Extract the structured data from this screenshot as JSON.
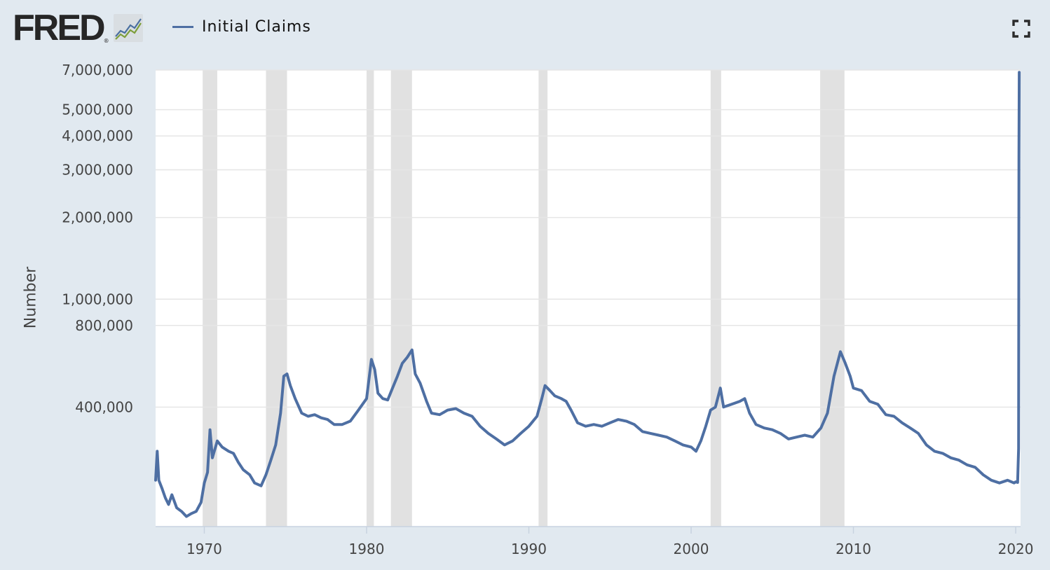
{
  "header": {
    "logo_text": "FRED",
    "logo_mark": "®",
    "logo_icon": "chart-line-icon",
    "fullscreen_icon": "fullscreen-icon"
  },
  "colors": {
    "background": "#e1e9f0",
    "plot_background": "#ffffff",
    "series": "#4e6fa3",
    "recession": "#e1e1e1",
    "grid": "#e6e6e6",
    "axis_text": "#444444"
  },
  "chart_data": {
    "type": "line",
    "title": "",
    "xlabel": "",
    "ylabel": "Number",
    "y_scale": "log",
    "ylim": [
      145000,
      7000000
    ],
    "xlim": [
      1967.0,
      2020.3
    ],
    "legend": "top-left",
    "grid": true,
    "y_ticks": [
      {
        "value": 400000,
        "label": "400,000"
      },
      {
        "value": 800000,
        "label": "800,000"
      },
      {
        "value": 1000000,
        "label": "1,000,000"
      },
      {
        "value": 2000000,
        "label": "2,000,000"
      },
      {
        "value": 3000000,
        "label": "3,000,000"
      },
      {
        "value": 4000000,
        "label": "4,000,000"
      },
      {
        "value": 5000000,
        "label": "5,000,000"
      },
      {
        "value": 7000000,
        "label": "7,000,000"
      }
    ],
    "x_ticks": [
      {
        "value": 1970,
        "label": "1970"
      },
      {
        "value": 1980,
        "label": "1980"
      },
      {
        "value": 1990,
        "label": "1990"
      },
      {
        "value": 2000,
        "label": "2000"
      },
      {
        "value": 2010,
        "label": "2010"
      },
      {
        "value": 2020,
        "label": "2020"
      }
    ],
    "recessions": [
      {
        "start": 1969.9,
        "end": 1970.8
      },
      {
        "start": 1973.8,
        "end": 1975.1
      },
      {
        "start": 1980.0,
        "end": 1980.45
      },
      {
        "start": 1981.5,
        "end": 1982.8
      },
      {
        "start": 1990.6,
        "end": 1991.15
      },
      {
        "start": 2001.2,
        "end": 2001.85
      },
      {
        "start": 2007.95,
        "end": 2009.45
      }
    ],
    "series": [
      {
        "name": "Initial Claims",
        "points": [
          [
            1967.0,
            215000
          ],
          [
            1967.1,
            275000
          ],
          [
            1967.2,
            215000
          ],
          [
            1967.4,
            200000
          ],
          [
            1967.6,
            185000
          ],
          [
            1967.8,
            175000
          ],
          [
            1968.0,
            190000
          ],
          [
            1968.3,
            170000
          ],
          [
            1968.6,
            165000
          ],
          [
            1968.9,
            158000
          ],
          [
            1969.2,
            162000
          ],
          [
            1969.5,
            165000
          ],
          [
            1969.8,
            178000
          ],
          [
            1970.0,
            210000
          ],
          [
            1970.2,
            230000
          ],
          [
            1970.35,
            330000
          ],
          [
            1970.5,
            260000
          ],
          [
            1970.8,
            300000
          ],
          [
            1971.1,
            285000
          ],
          [
            1971.5,
            275000
          ],
          [
            1971.8,
            270000
          ],
          [
            1972.1,
            250000
          ],
          [
            1972.4,
            235000
          ],
          [
            1972.8,
            225000
          ],
          [
            1973.1,
            210000
          ],
          [
            1973.5,
            205000
          ],
          [
            1973.8,
            225000
          ],
          [
            1974.1,
            255000
          ],
          [
            1974.4,
            290000
          ],
          [
            1974.7,
            380000
          ],
          [
            1974.9,
            520000
          ],
          [
            1975.1,
            530000
          ],
          [
            1975.3,
            480000
          ],
          [
            1975.6,
            430000
          ],
          [
            1976.0,
            380000
          ],
          [
            1976.4,
            370000
          ],
          [
            1976.8,
            375000
          ],
          [
            1977.2,
            365000
          ],
          [
            1977.6,
            360000
          ],
          [
            1978.0,
            345000
          ],
          [
            1978.5,
            345000
          ],
          [
            1979.0,
            355000
          ],
          [
            1979.5,
            390000
          ],
          [
            1980.0,
            430000
          ],
          [
            1980.3,
            600000
          ],
          [
            1980.5,
            550000
          ],
          [
            1980.7,
            450000
          ],
          [
            1981.0,
            430000
          ],
          [
            1981.3,
            425000
          ],
          [
            1981.6,
            470000
          ],
          [
            1981.9,
            520000
          ],
          [
            1982.2,
            580000
          ],
          [
            1982.5,
            610000
          ],
          [
            1982.8,
            650000
          ],
          [
            1983.0,
            530000
          ],
          [
            1983.3,
            490000
          ],
          [
            1983.7,
            420000
          ],
          [
            1984.0,
            380000
          ],
          [
            1984.5,
            375000
          ],
          [
            1985.0,
            390000
          ],
          [
            1985.5,
            395000
          ],
          [
            1986.0,
            380000
          ],
          [
            1986.5,
            370000
          ],
          [
            1987.0,
            340000
          ],
          [
            1987.5,
            320000
          ],
          [
            1988.0,
            305000
          ],
          [
            1988.5,
            290000
          ],
          [
            1989.0,
            300000
          ],
          [
            1989.5,
            320000
          ],
          [
            1990.0,
            340000
          ],
          [
            1990.5,
            370000
          ],
          [
            1990.8,
            430000
          ],
          [
            1991.0,
            480000
          ],
          [
            1991.3,
            460000
          ],
          [
            1991.6,
            440000
          ],
          [
            1992.0,
            430000
          ],
          [
            1992.3,
            420000
          ],
          [
            1992.6,
            390000
          ],
          [
            1993.0,
            350000
          ],
          [
            1993.5,
            340000
          ],
          [
            1994.0,
            345000
          ],
          [
            1994.5,
            340000
          ],
          [
            1995.0,
            350000
          ],
          [
            1995.5,
            360000
          ],
          [
            1996.0,
            355000
          ],
          [
            1996.5,
            345000
          ],
          [
            1997.0,
            325000
          ],
          [
            1997.5,
            320000
          ],
          [
            1998.0,
            315000
          ],
          [
            1998.5,
            310000
          ],
          [
            1999.0,
            300000
          ],
          [
            1999.5,
            290000
          ],
          [
            2000.0,
            285000
          ],
          [
            2000.3,
            275000
          ],
          [
            2000.6,
            300000
          ],
          [
            2000.9,
            340000
          ],
          [
            2001.2,
            390000
          ],
          [
            2001.5,
            400000
          ],
          [
            2001.8,
            470000
          ],
          [
            2002.0,
            400000
          ],
          [
            2002.5,
            410000
          ],
          [
            2003.0,
            420000
          ],
          [
            2003.3,
            430000
          ],
          [
            2003.6,
            380000
          ],
          [
            2004.0,
            345000
          ],
          [
            2004.5,
            335000
          ],
          [
            2005.0,
            330000
          ],
          [
            2005.5,
            320000
          ],
          [
            2006.0,
            305000
          ],
          [
            2006.5,
            310000
          ],
          [
            2007.0,
            315000
          ],
          [
            2007.5,
            310000
          ],
          [
            2008.0,
            335000
          ],
          [
            2008.4,
            380000
          ],
          [
            2008.8,
            520000
          ],
          [
            2009.2,
            640000
          ],
          [
            2009.5,
            580000
          ],
          [
            2009.8,
            520000
          ],
          [
            2010.0,
            470000
          ],
          [
            2010.5,
            460000
          ],
          [
            2011.0,
            420000
          ],
          [
            2011.5,
            410000
          ],
          [
            2012.0,
            375000
          ],
          [
            2012.5,
            370000
          ],
          [
            2013.0,
            350000
          ],
          [
            2013.5,
            335000
          ],
          [
            2014.0,
            320000
          ],
          [
            2014.5,
            290000
          ],
          [
            2015.0,
            275000
          ],
          [
            2015.5,
            270000
          ],
          [
            2016.0,
            260000
          ],
          [
            2016.5,
            255000
          ],
          [
            2017.0,
            245000
          ],
          [
            2017.5,
            240000
          ],
          [
            2018.0,
            225000
          ],
          [
            2018.5,
            215000
          ],
          [
            2019.0,
            210000
          ],
          [
            2019.5,
            215000
          ],
          [
            2019.9,
            210000
          ],
          [
            2020.0,
            212000
          ],
          [
            2020.12,
            211000
          ],
          [
            2020.18,
            281000
          ],
          [
            2020.2,
            3307000
          ],
          [
            2020.22,
            6867000
          ]
        ]
      }
    ]
  }
}
